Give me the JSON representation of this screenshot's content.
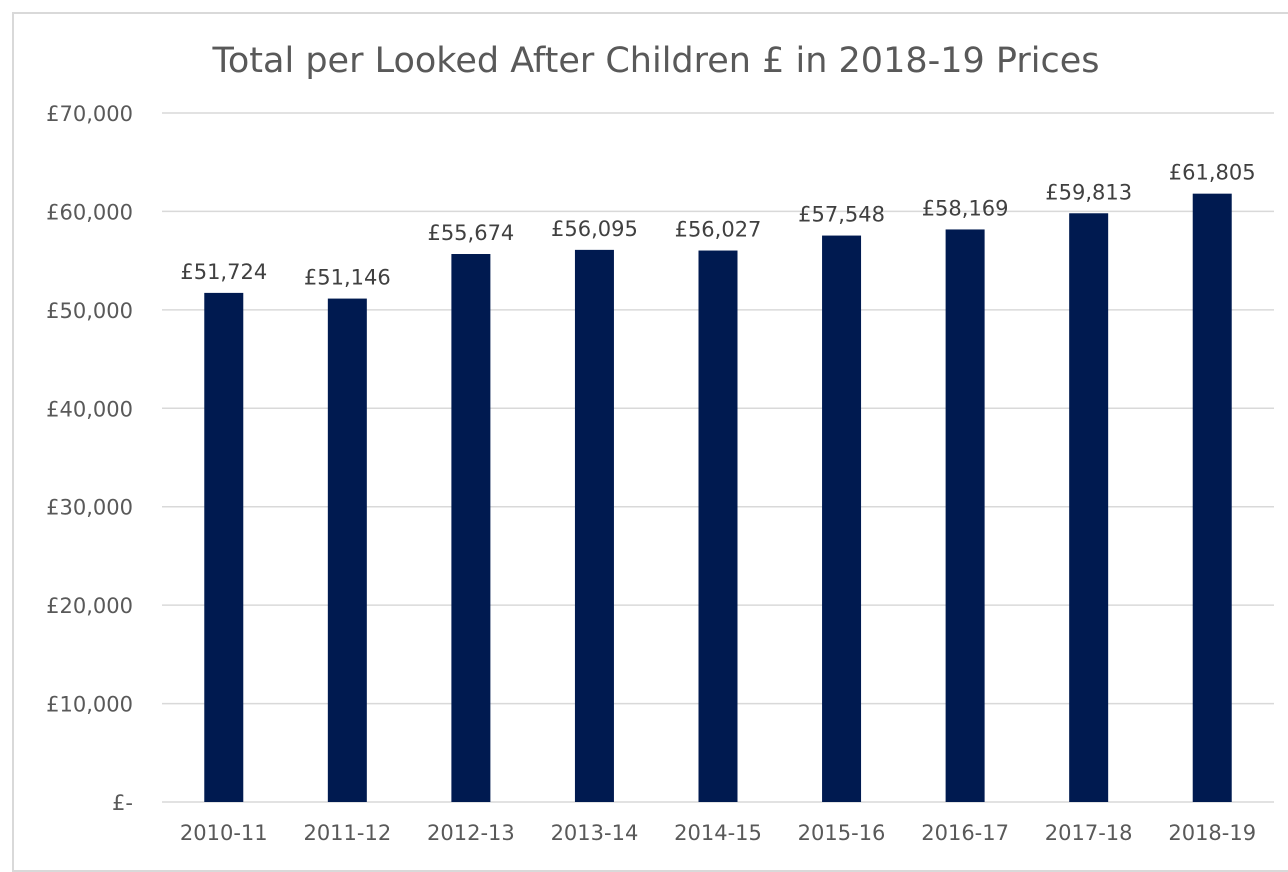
{
  "chart_data": {
    "type": "bar",
    "title": "Total per Looked After Children £ in 2018-19 Prices",
    "xlabel": "",
    "ylabel": "",
    "categories": [
      "2010-11",
      "2011-12",
      "2012-13",
      "2013-14",
      "2014-15",
      "2015-16",
      "2016-17",
      "2017-18",
      "2018-19"
    ],
    "values": [
      51724,
      51146,
      55674,
      56095,
      56027,
      57548,
      58169,
      59813,
      61805
    ],
    "data_labels": [
      "£51,724",
      "£51,146",
      "£55,674",
      "£56,095",
      "£56,027",
      "£57,548",
      "£58,169",
      "£59,813",
      "£61,805"
    ],
    "y_ticks": [
      0,
      10000,
      20000,
      30000,
      40000,
      50000,
      60000,
      70000
    ],
    "y_tick_labels": [
      "£-",
      "£10,000",
      "£20,000",
      "£30,000",
      "£40,000",
      "£50,000",
      "£60,000",
      "£70,000"
    ],
    "ylim": [
      0,
      70000
    ],
    "grid": true,
    "legend": "none",
    "colors": {
      "bar": "#001a50",
      "grid": "#d9d9d9",
      "title": "#595959",
      "tick_label": "#595959",
      "data_label": "#404040"
    }
  }
}
